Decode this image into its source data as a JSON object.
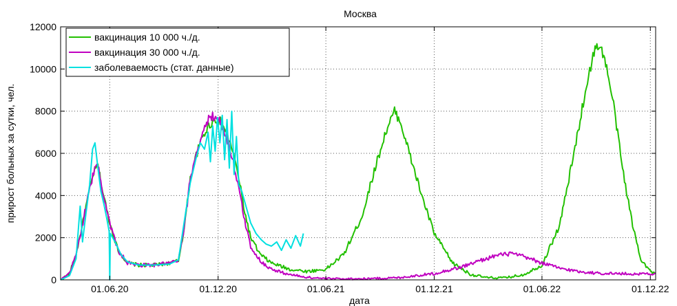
{
  "chart_data": {
    "type": "line",
    "title": "Москва",
    "xlabel": "дата",
    "ylabel": "прирост больных за сутки, чел.",
    "ylim": [
      0,
      12000
    ],
    "xlim": [
      "2020-03-10",
      "2022-12-10"
    ],
    "grid": true,
    "grid_style": "dotted",
    "legend_position": "top-left",
    "x_ticks": [
      "2020-06-01",
      "2020-12-01",
      "2021-06-01",
      "2021-12-01",
      "2022-06-01",
      "2022-12-01"
    ],
    "x_tick_labels": [
      "01.06.20",
      "01.12.20",
      "01.06.21",
      "01.12.21",
      "01.06.22",
      "01.12.22"
    ],
    "y_ticks": [
      0,
      2000,
      4000,
      6000,
      8000,
      10000,
      12000
    ],
    "y_tick_labels": [
      "0",
      "2000",
      "4000",
      "6000",
      "8000",
      "10000",
      "12000"
    ],
    "series": [
      {
        "name": "вакцинация 10 000 ч./д.",
        "color": "#22c000",
        "points": [
          [
            "2020-03-10",
            0
          ],
          [
            "2020-03-25",
            300
          ],
          [
            "2020-04-05",
            1200
          ],
          [
            "2020-04-15",
            2500
          ],
          [
            "2020-04-25",
            3900
          ],
          [
            "2020-05-05",
            5100
          ],
          [
            "2020-05-12",
            5400
          ],
          [
            "2020-05-20",
            4200
          ],
          [
            "2020-06-01",
            2700
          ],
          [
            "2020-06-15",
            1400
          ],
          [
            "2020-07-01",
            800
          ],
          [
            "2020-07-20",
            700
          ],
          [
            "2020-08-15",
            700
          ],
          [
            "2020-09-10",
            800
          ],
          [
            "2020-09-25",
            900
          ],
          [
            "2020-10-05",
            2500
          ],
          [
            "2020-10-15",
            4800
          ],
          [
            "2020-10-25",
            5900
          ],
          [
            "2020-11-05",
            6800
          ],
          [
            "2020-11-15",
            7300
          ],
          [
            "2020-11-25",
            7600
          ],
          [
            "2020-12-05",
            7500
          ],
          [
            "2020-12-15",
            7000
          ],
          [
            "2020-12-25",
            6200
          ],
          [
            "2021-01-05",
            4800
          ],
          [
            "2021-01-15",
            3200
          ],
          [
            "2021-01-25",
            2000
          ],
          [
            "2021-02-10",
            1200
          ],
          [
            "2021-03-01",
            800
          ],
          [
            "2021-04-01",
            500
          ],
          [
            "2021-05-01",
            400
          ],
          [
            "2021-06-01",
            500
          ],
          [
            "2021-07-01",
            1200
          ],
          [
            "2021-08-01",
            3000
          ],
          [
            "2021-08-20",
            5000
          ],
          [
            "2021-09-10",
            7000
          ],
          [
            "2021-09-25",
            8000
          ],
          [
            "2021-10-05",
            7500
          ],
          [
            "2021-10-20",
            6000
          ],
          [
            "2021-11-10",
            4000
          ],
          [
            "2021-12-01",
            2200
          ],
          [
            "2022-01-01",
            800
          ],
          [
            "2022-02-01",
            250
          ],
          [
            "2022-03-01",
            100
          ],
          [
            "2022-04-01",
            100
          ],
          [
            "2022-05-01",
            250
          ],
          [
            "2022-06-01",
            700
          ],
          [
            "2022-07-01",
            2600
          ],
          [
            "2022-07-25",
            6000
          ],
          [
            "2022-08-15",
            9200
          ],
          [
            "2022-08-28",
            10800
          ],
          [
            "2022-09-05",
            11200
          ],
          [
            "2022-09-15",
            10500
          ],
          [
            "2022-09-30",
            8300
          ],
          [
            "2022-10-15",
            5300
          ],
          [
            "2022-11-01",
            2600
          ],
          [
            "2022-11-15",
            1000
          ],
          [
            "2022-12-01",
            400
          ],
          [
            "2022-12-10",
            300
          ]
        ]
      },
      {
        "name": "вакцинация 30 000 ч./д.",
        "color": "#c000c0",
        "points": [
          [
            "2020-03-10",
            0
          ],
          [
            "2020-03-25",
            300
          ],
          [
            "2020-04-05",
            1200
          ],
          [
            "2020-04-15",
            2500
          ],
          [
            "2020-04-25",
            3900
          ],
          [
            "2020-05-05",
            5100
          ],
          [
            "2020-05-12",
            5500
          ],
          [
            "2020-05-20",
            4200
          ],
          [
            "2020-06-01",
            2700
          ],
          [
            "2020-06-15",
            1400
          ],
          [
            "2020-07-01",
            800
          ],
          [
            "2020-07-20",
            700
          ],
          [
            "2020-08-15",
            700
          ],
          [
            "2020-09-10",
            800
          ],
          [
            "2020-09-25",
            900
          ],
          [
            "2020-10-05",
            2500
          ],
          [
            "2020-10-15",
            4800
          ],
          [
            "2020-10-25",
            6000
          ],
          [
            "2020-11-05",
            7000
          ],
          [
            "2020-11-15",
            7600
          ],
          [
            "2020-11-25",
            7800
          ],
          [
            "2020-12-05",
            7500
          ],
          [
            "2020-12-15",
            6800
          ],
          [
            "2020-12-25",
            5800
          ],
          [
            "2021-01-05",
            4300
          ],
          [
            "2021-01-15",
            2800
          ],
          [
            "2021-01-25",
            1600
          ],
          [
            "2021-02-10",
            900
          ],
          [
            "2021-03-01",
            500
          ],
          [
            "2021-04-01",
            250
          ],
          [
            "2021-05-01",
            120
          ],
          [
            "2021-06-01",
            60
          ],
          [
            "2021-08-01",
            50
          ],
          [
            "2021-10-01",
            100
          ],
          [
            "2021-12-01",
            300
          ],
          [
            "2022-01-15",
            600
          ],
          [
            "2022-02-15",
            900
          ],
          [
            "2022-03-15",
            1150
          ],
          [
            "2022-04-10",
            1250
          ],
          [
            "2022-05-01",
            1100
          ],
          [
            "2022-06-01",
            800
          ],
          [
            "2022-07-01",
            550
          ],
          [
            "2022-08-01",
            400
          ],
          [
            "2022-09-01",
            320
          ],
          [
            "2022-10-01",
            300
          ],
          [
            "2022-11-01",
            280
          ],
          [
            "2022-12-10",
            300
          ]
        ]
      },
      {
        "name": "заболеваемость (стат. данные)",
        "color": "#00e0e0",
        "points": [
          [
            "2020-03-10",
            0
          ],
          [
            "2020-03-25",
            200
          ],
          [
            "2020-04-05",
            1000
          ],
          [
            "2020-04-12",
            3500
          ],
          [
            "2020-04-16",
            1800
          ],
          [
            "2020-04-22",
            3200
          ],
          [
            "2020-04-28",
            4500
          ],
          [
            "2020-05-03",
            6200
          ],
          [
            "2020-05-07",
            6500
          ],
          [
            "2020-05-12",
            5300
          ],
          [
            "2020-05-17",
            4200
          ],
          [
            "2020-05-22",
            3600
          ],
          [
            "2020-05-27",
            2900
          ],
          [
            "2020-05-31",
            2300
          ],
          [
            "2020-06-01",
            0
          ],
          [
            "2020-06-02",
            2200
          ],
          [
            "2020-06-10",
            1800
          ],
          [
            "2020-06-20",
            1200
          ],
          [
            "2020-07-01",
            850
          ],
          [
            "2020-07-20",
            700
          ],
          [
            "2020-08-15",
            700
          ],
          [
            "2020-09-10",
            750
          ],
          [
            "2020-09-25",
            950
          ],
          [
            "2020-10-05",
            2800
          ],
          [
            "2020-10-15",
            4600
          ],
          [
            "2020-10-25",
            5800
          ],
          [
            "2020-11-01",
            6500
          ],
          [
            "2020-11-08",
            6200
          ],
          [
            "2020-11-14",
            7000
          ],
          [
            "2020-11-18",
            5600
          ],
          [
            "2020-11-22",
            7300
          ],
          [
            "2020-11-26",
            6100
          ],
          [
            "2020-11-30",
            7700
          ],
          [
            "2020-12-04",
            6500
          ],
          [
            "2020-12-08",
            7800
          ],
          [
            "2020-12-12",
            5700
          ],
          [
            "2020-12-16",
            7600
          ],
          [
            "2020-12-20",
            5300
          ],
          [
            "2020-12-24",
            8000
          ],
          [
            "2020-12-28",
            5000
          ],
          [
            "2021-01-01",
            6800
          ],
          [
            "2021-01-05",
            4500
          ],
          [
            "2021-01-10",
            4200
          ],
          [
            "2021-01-18",
            3400
          ],
          [
            "2021-01-25",
            2700
          ],
          [
            "2021-02-03",
            2200
          ],
          [
            "2021-02-12",
            1900
          ],
          [
            "2021-02-20",
            1700
          ],
          [
            "2021-03-01",
            1600
          ],
          [
            "2021-03-10",
            1800
          ],
          [
            "2021-03-18",
            1400
          ],
          [
            "2021-03-26",
            1900
          ],
          [
            "2021-04-03",
            1500
          ],
          [
            "2021-04-11",
            2100
          ],
          [
            "2021-04-19",
            1600
          ],
          [
            "2021-04-24",
            2200
          ]
        ]
      }
    ]
  }
}
